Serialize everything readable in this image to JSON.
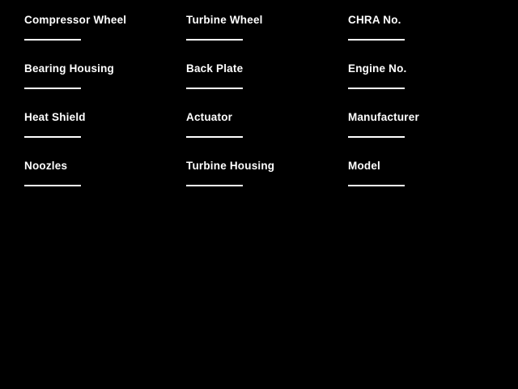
{
  "window": {
    "background": "#000000",
    "foreground": "#ffffff",
    "underline_color": "#ffffff"
  },
  "form": {
    "columns": [
      {
        "fields": [
          {
            "label": "Compressor Wheel",
            "value": ""
          },
          {
            "label": "Bearing Housing",
            "value": ""
          },
          {
            "label": "Heat Shield",
            "value": ""
          },
          {
            "label": "Noozles",
            "value": ""
          }
        ]
      },
      {
        "fields": [
          {
            "label": "Turbine Wheel",
            "value": ""
          },
          {
            "label": "Back Plate",
            "value": ""
          },
          {
            "label": "Actuator",
            "value": ""
          },
          {
            "label": "Turbine Housing",
            "value": ""
          }
        ]
      },
      {
        "fields": [
          {
            "label": "CHRA No.",
            "value": ""
          },
          {
            "label": "Engine No.",
            "value": ""
          },
          {
            "label": "Manufacturer",
            "value": ""
          },
          {
            "label": "Model",
            "value": ""
          }
        ]
      }
    ]
  }
}
